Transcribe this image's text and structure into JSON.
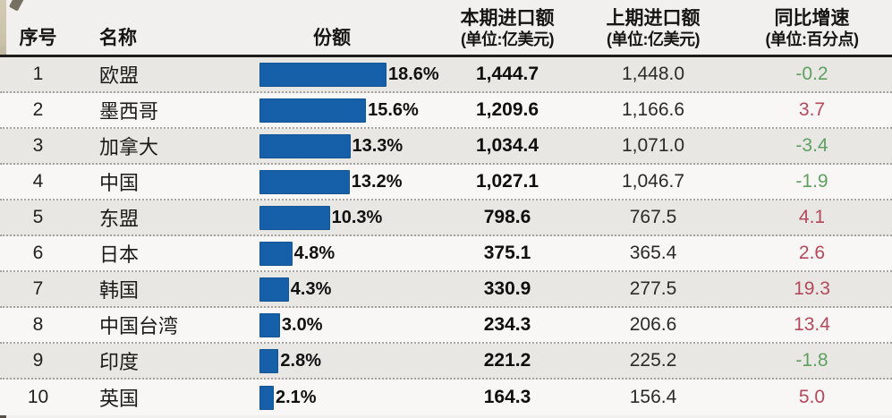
{
  "colors": {
    "bar": "#1560a9",
    "positive": "#b5485a",
    "negative": "#5fa061",
    "header_line": "#1d1c1a",
    "row_odd": "#e8e7e4",
    "row_even": "#f8f7f5",
    "page_bg": "#f1f0ee"
  },
  "header": {
    "index": "序号",
    "name": "名称",
    "share": "份额",
    "current": {
      "label": "本期进口额",
      "unit": "(单位:亿美元)"
    },
    "previous": {
      "label": "上期进口额",
      "unit": "(单位:亿美元)"
    },
    "growth": {
      "label": "同比增速",
      "unit": "(单位:百分点)"
    }
  },
  "rows": [
    {
      "index": "1",
      "name": "欧盟",
      "share_pct": 18.6,
      "share_label": "18.6%",
      "current": "1,444.7",
      "previous": "1,448.0",
      "growth": "-0.2"
    },
    {
      "index": "2",
      "name": "墨西哥",
      "share_pct": 15.6,
      "share_label": "15.6%",
      "current": "1,209.6",
      "previous": "1,166.6",
      "growth": "3.7"
    },
    {
      "index": "3",
      "name": "加拿大",
      "share_pct": 13.3,
      "share_label": "13.3%",
      "current": "1,034.4",
      "previous": "1,071.0",
      "growth": "-3.4"
    },
    {
      "index": "4",
      "name": "中国",
      "share_pct": 13.2,
      "share_label": "13.2%",
      "current": "1,027.1",
      "previous": "1,046.7",
      "growth": "-1.9"
    },
    {
      "index": "5",
      "name": "东盟",
      "share_pct": 10.3,
      "share_label": "10.3%",
      "current": "798.6",
      "previous": "767.5",
      "growth": "4.1"
    },
    {
      "index": "6",
      "name": "日本",
      "share_pct": 4.8,
      "share_label": "4.8%",
      "current": "375.1",
      "previous": "365.4",
      "growth": "2.6"
    },
    {
      "index": "7",
      "name": "韩国",
      "share_pct": 4.3,
      "share_label": "4.3%",
      "current": "330.9",
      "previous": "277.5",
      "growth": "19.3"
    },
    {
      "index": "8",
      "name": "中国台湾",
      "share_pct": 3.0,
      "share_label": "3.0%",
      "current": "234.3",
      "previous": "206.6",
      "growth": "13.4"
    },
    {
      "index": "9",
      "name": "印度",
      "share_pct": 2.8,
      "share_label": "2.8%",
      "current": "221.2",
      "previous": "225.2",
      "growth": "-1.8"
    },
    {
      "index": "10",
      "name": "英国",
      "share_pct": 2.1,
      "share_label": "2.1%",
      "current": "164.3",
      "previous": "156.4",
      "growth": "5.0"
    }
  ],
  "chart_data": {
    "type": "table",
    "title": "",
    "columns": [
      "序号",
      "名称",
      "份额",
      "本期进口额(单位:亿美元)",
      "上期进口额(单位:亿美元)",
      "同比增速(单位:百分点)"
    ],
    "rows": [
      [
        1,
        "欧盟",
        "18.6%",
        1444.7,
        1448.0,
        -0.2
      ],
      [
        2,
        "墨西哥",
        "15.6%",
        1209.6,
        1166.6,
        3.7
      ],
      [
        3,
        "加拿大",
        "13.3%",
        1034.4,
        1071.0,
        -3.4
      ],
      [
        4,
        "中国",
        "13.2%",
        1027.1,
        1046.7,
        -1.9
      ],
      [
        5,
        "东盟",
        "10.3%",
        798.6,
        767.5,
        4.1
      ],
      [
        6,
        "日本",
        "4.8%",
        375.1,
        365.4,
        2.6
      ],
      [
        7,
        "韩国",
        "4.3%",
        330.9,
        277.5,
        19.3
      ],
      [
        8,
        "中国台湾",
        "3.0%",
        234.3,
        206.6,
        13.4
      ],
      [
        9,
        "印度",
        "2.8%",
        221.2,
        225.2,
        -1.8
      ],
      [
        10,
        "英国",
        "2.1%",
        164.3,
        156.4,
        5.0
      ]
    ],
    "embedded_bar": {
      "type": "bar",
      "orientation": "horizontal",
      "categories": [
        "欧盟",
        "墨西哥",
        "加拿大",
        "中国",
        "东盟",
        "日本",
        "韩国",
        "中国台湾",
        "印度",
        "英国"
      ],
      "values": [
        18.6,
        15.6,
        13.3,
        13.2,
        10.3,
        4.8,
        4.3,
        3.0,
        2.8,
        2.1
      ],
      "unit": "%",
      "xlim": [
        0,
        18.6
      ],
      "bar_color": "#1560a9",
      "value_labels": "right-of-bar"
    },
    "style_notes": "positive growth rendered red, negative growth rendered green"
  }
}
